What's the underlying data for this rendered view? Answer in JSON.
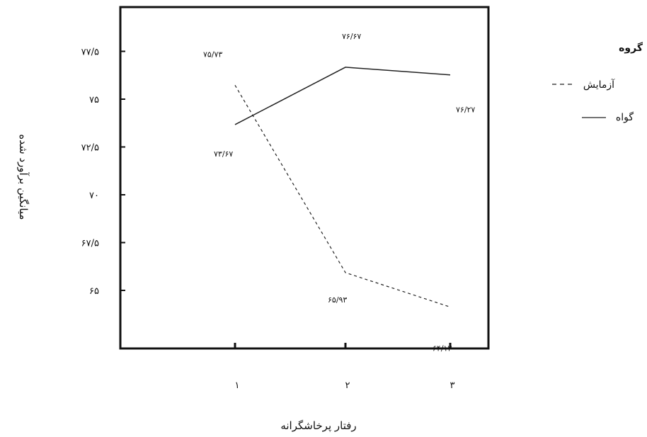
{
  "chart_data": {
    "type": "line",
    "x": [
      1,
      2,
      3
    ],
    "x_tick_labels": [
      "۱",
      "۲",
      "۳"
    ],
    "y_tick_values": [
      65,
      67.5,
      70,
      72.5,
      75,
      77.5
    ],
    "y_tick_labels": [
      "۶۵",
      "۶۷/۵",
      "۷۰",
      "۷۲/۵",
      "۷۵",
      "۷۷/۵"
    ],
    "ylim": [
      62,
      80
    ],
    "xlabel": "رفتار پرخاشگرانه",
    "ylabel": "میانگین برآورد شده",
    "grid": false,
    "legend": {
      "title": "گروه",
      "placement": "right"
    },
    "series": [
      {
        "name": "آزمایش",
        "style": "dashed",
        "color": "#222222",
        "values": [
          75.73,
          65.93,
          64.13
        ],
        "value_labels": [
          "۷۵/۷۳",
          "۶۵/۹۳",
          "۶۴/۱۳"
        ]
      },
      {
        "name": "گواه",
        "style": "solid",
        "color": "#222222",
        "values": [
          73.67,
          76.67,
          76.27
        ],
        "value_labels": [
          "۷۳/۶۷",
          "۷۶/۶۷",
          "۷۶/۲۷"
        ]
      }
    ]
  }
}
